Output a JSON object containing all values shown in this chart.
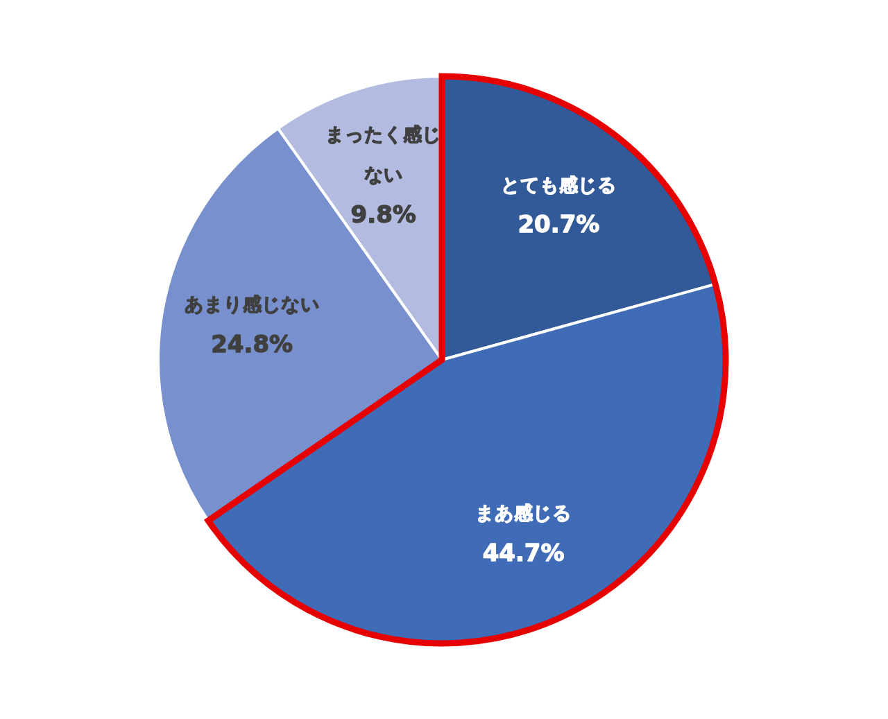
{
  "chart_data": {
    "type": "pie",
    "categories": [
      "とても感じる",
      "まあ感じる",
      "あまり感じない",
      "まったく感じない"
    ],
    "values": [
      20.7,
      44.7,
      24.8,
      9.8
    ],
    "colors": [
      "#335a98",
      "#3f6bb7",
      "#7890cd",
      "#b3bce0"
    ],
    "value_labels": [
      "20.7%",
      "44.7%",
      "24.8%",
      "9.8%"
    ]
  }
}
